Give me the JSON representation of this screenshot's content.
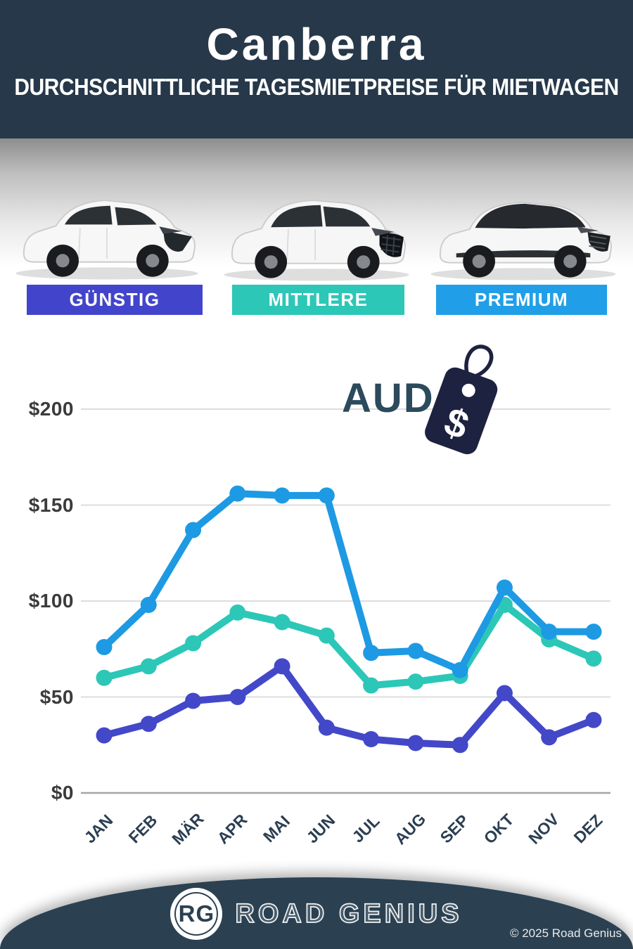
{
  "header": {
    "title": "Canberra",
    "subtitle": "DURCHSCHNITTLICHE TAGESMIETPREISE FÜR MIETWAGEN"
  },
  "category_labels": [
    {
      "label": "GÜNSTIG",
      "color": "#4245cb"
    },
    {
      "label": "MITTLERE",
      "color": "#2cc7b7"
    },
    {
      "label": "PREMIUM",
      "color": "#209fe8"
    }
  ],
  "currency": {
    "code": "AUD",
    "tag_symbol": "$"
  },
  "chart_data": {
    "type": "line",
    "categories": [
      "JAN",
      "FEB",
      "MÄR",
      "APR",
      "MAI",
      "JUN",
      "JUL",
      "AUG",
      "SEP",
      "OKT",
      "NOV",
      "DEZ"
    ],
    "series": [
      {
        "name": "GÜNSTIG",
        "color": "#4348c9",
        "values": [
          30,
          36,
          48,
          50,
          66,
          34,
          28,
          26,
          25,
          52,
          29,
          38
        ]
      },
      {
        "name": "MITTLERE",
        "color": "#2cc7b7",
        "values": [
          60,
          66,
          78,
          94,
          89,
          82,
          56,
          58,
          61,
          98,
          80,
          70
        ]
      },
      {
        "name": "PREMIUM",
        "color": "#1d9ae3",
        "values": [
          76,
          98,
          137,
          156,
          155,
          155,
          73,
          74,
          64,
          107,
          84,
          84
        ]
      }
    ],
    "y_ticks": [
      "$0",
      "$50",
      "$100",
      "$150",
      "$200"
    ],
    "y_tick_values": [
      0,
      50,
      100,
      150,
      200
    ],
    "ylim": [
      0,
      200
    ],
    "y_axis_prefix": "$",
    "grid": true,
    "legend_position": "category-bars-above-chart"
  },
  "footer": {
    "logo_initials": "RG",
    "logo_text": "ROAD GENIUS",
    "copyright": "© 2025 Road Genius"
  }
}
